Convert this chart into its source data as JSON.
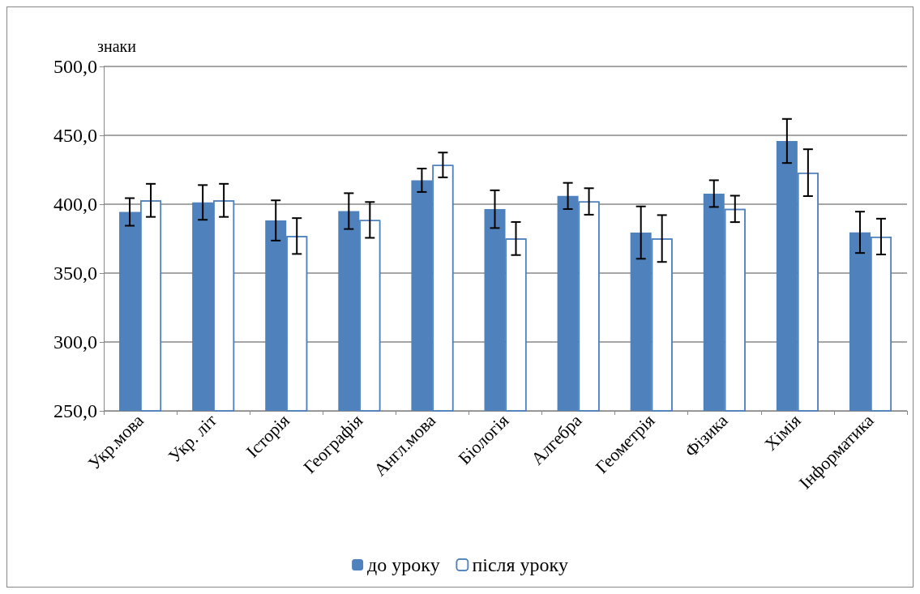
{
  "chart_data": {
    "type": "bar",
    "ylabel": "знаки",
    "categories": [
      "Укр.мова",
      "Укр. літ",
      "Історія",
      "Географія",
      "Англ.мова",
      "Біологія",
      "Алгебра",
      "Геометрія",
      "Фізика",
      "Хімія",
      "Інформатика"
    ],
    "series": [
      {
        "name": "до уроку",
        "color": "#4f81bd",
        "values": [
          394.4,
          401.3,
          388.2,
          395,
          417.4,
          396.4,
          406,
          379.4,
          407.7,
          445.9,
          379.6
        ],
        "errors": [
          10,
          12.6,
          14.6,
          13,
          8.5,
          13.7,
          9.5,
          19,
          9.7,
          16,
          15
        ]
      },
      {
        "name": "після уроку",
        "color": "#4f81bd",
        "values": [
          402.8,
          402.8,
          376.9,
          388.6,
          428.5,
          375.1,
          402,
          375.1,
          396.6,
          422.9,
          376.5
        ],
        "errors": [
          12,
          12,
          13,
          13,
          9,
          12,
          9.6,
          17,
          9.6,
          17,
          13
        ]
      }
    ],
    "ylim": [
      250,
      500
    ],
    "yticks": [
      {
        "value": 250,
        "label": "250,0"
      },
      {
        "value": 300,
        "label": "300,0"
      },
      {
        "value": 350,
        "label": "350,0"
      },
      {
        "value": 400,
        "label": "400,0"
      },
      {
        "value": 450,
        "label": "450,0"
      },
      {
        "value": 500,
        "label": "500,0"
      }
    ],
    "grid": "y",
    "legend": "bottom"
  }
}
